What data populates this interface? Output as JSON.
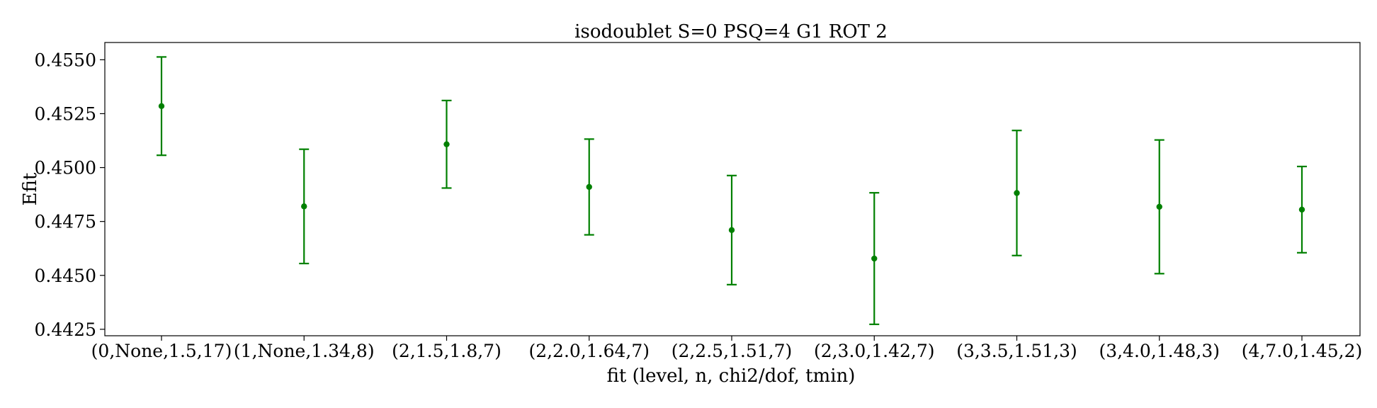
{
  "chart_data": {
    "type": "scatter",
    "title": "isodoublet S=0 PSQ=4 G1 ROT 2",
    "xlabel": "fit (level, n, chi2/dof, tmin)",
    "ylabel": "Efit",
    "categories": [
      "(0,None,1.5,17)",
      "(1,None,1.34,8)",
      "(2,1.5,1.8,7)",
      "(2,2.0,1.64,7)",
      "(2,2.5,1.51,7)",
      "(2,3.0,1.42,7)",
      "(3,3.5,1.51,3)",
      "(3,4.0,1.48,3)",
      "(4,7.0,1.45,2)"
    ],
    "values": [
      0.45285,
      0.4482,
      0.45108,
      0.4491,
      0.4471,
      0.44578,
      0.44882,
      0.44818,
      0.44805
    ],
    "errors": [
      0.00228,
      0.00265,
      0.00203,
      0.00222,
      0.00253,
      0.00305,
      0.0029,
      0.0031,
      0.002
    ],
    "ylim": [
      0.4422,
      0.4558
    ],
    "yticks": [
      "0.4425",
      "0.4450",
      "0.4475",
      "0.4500",
      "0.4525",
      "0.4550"
    ],
    "ytick_values": [
      0.4425,
      0.445,
      0.4475,
      0.45,
      0.4525,
      0.455
    ],
    "grid": false,
    "color": "#008000"
  }
}
